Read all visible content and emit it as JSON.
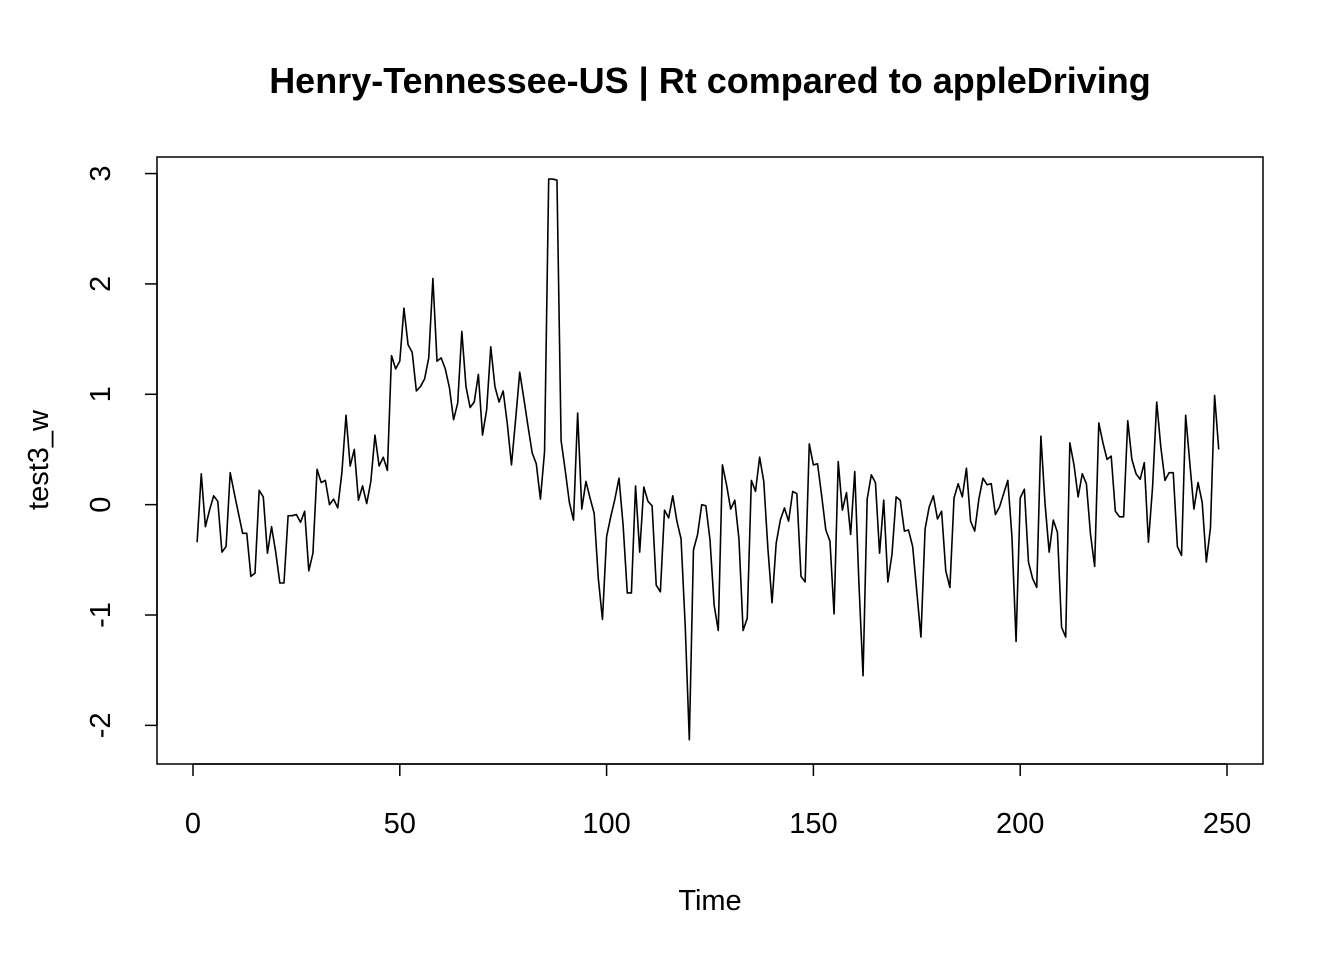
{
  "chart_data": {
    "type": "line",
    "title": "Henry-Tennessee-US | Rt compared to appleDriving",
    "xlabel": "Time",
    "ylabel": "test3_w",
    "xlim": [
      -8.7,
      258.7
    ],
    "ylim": [
      -2.35,
      3.15
    ],
    "xticks": [
      0,
      50,
      100,
      150,
      200,
      250
    ],
    "yticks": [
      -2,
      -1,
      0,
      1,
      2,
      3
    ],
    "grid": false,
    "color": "#000000",
    "series": [
      {
        "x_start": 1,
        "values": [
          -0.34,
          0.28,
          -0.2,
          -0.05,
          0.08,
          0.03,
          -0.43,
          -0.38,
          0.29,
          0.1,
          -0.08,
          -0.26,
          -0.26,
          -0.65,
          -0.62,
          0.13,
          0.07,
          -0.44,
          -0.2,
          -0.43,
          -0.71,
          -0.71,
          -0.1,
          -0.1,
          -0.09,
          -0.16,
          -0.06,
          -0.6,
          -0.44,
          0.32,
          0.2,
          0.22,
          0.0,
          0.05,
          -0.03,
          0.29,
          0.81,
          0.35,
          0.5,
          0.04,
          0.17,
          0.01,
          0.21,
          0.63,
          0.35,
          0.43,
          0.31,
          1.35,
          1.23,
          1.3,
          1.78,
          1.45,
          1.38,
          1.03,
          1.07,
          1.14,
          1.33,
          2.05,
          1.3,
          1.33,
          1.23,
          1.06,
          0.77,
          0.92,
          1.57,
          1.07,
          0.88,
          0.93,
          1.18,
          0.63,
          0.86,
          1.43,
          1.07,
          0.93,
          1.03,
          0.73,
          0.36,
          0.77,
          1.2,
          0.96,
          0.71,
          0.47,
          0.37,
          0.05,
          0.48,
          2.95,
          2.95,
          2.94,
          0.58,
          0.31,
          0.02,
          -0.14,
          0.83,
          -0.04,
          0.21,
          0.06,
          -0.08,
          -0.67,
          -1.04,
          -0.29,
          -0.11,
          0.05,
          0.24,
          -0.19,
          -0.8,
          -0.8,
          0.17,
          -0.43,
          0.16,
          0.03,
          -0.01,
          -0.73,
          -0.79,
          -0.05,
          -0.12,
          0.08,
          -0.15,
          -0.31,
          -1.09,
          -2.13,
          -0.41,
          -0.27,
          0.0,
          -0.01,
          -0.32,
          -0.91,
          -1.14,
          0.36,
          0.18,
          -0.04,
          0.04,
          -0.31,
          -1.14,
          -1.03,
          0.22,
          0.12,
          0.43,
          0.21,
          -0.4,
          -0.89,
          -0.35,
          -0.14,
          -0.03,
          -0.15,
          0.12,
          0.1,
          -0.65,
          -0.7,
          0.55,
          0.36,
          0.37,
          0.08,
          -0.23,
          -0.33,
          -0.99,
          0.39,
          -0.05,
          0.11,
          -0.27,
          0.3,
          -0.71,
          -1.55,
          0.05,
          0.27,
          0.2,
          -0.44,
          0.04,
          -0.7,
          -0.45,
          0.07,
          0.04,
          -0.24,
          -0.23,
          -0.38,
          -0.79,
          -1.2,
          -0.22,
          -0.02,
          0.08,
          -0.13,
          -0.06,
          -0.6,
          -0.75,
          0.06,
          0.19,
          0.07,
          0.33,
          -0.15,
          -0.24,
          0.05,
          0.24,
          0.18,
          0.19,
          -0.09,
          -0.02,
          0.1,
          0.22,
          -0.29,
          -1.24,
          0.06,
          0.14,
          -0.52,
          -0.67,
          -0.75,
          0.62,
          0.01,
          -0.43,
          -0.14,
          -0.25,
          -1.11,
          -1.2,
          0.56,
          0.36,
          0.07,
          0.28,
          0.19,
          -0.27,
          -0.56,
          0.74,
          0.56,
          0.41,
          0.44,
          -0.06,
          -0.11,
          -0.11,
          0.76,
          0.41,
          0.28,
          0.23,
          0.38,
          -0.34,
          0.16,
          0.93,
          0.52,
          0.22,
          0.29,
          0.29,
          -0.38,
          -0.46,
          0.81,
          0.38,
          -0.04,
          0.2,
          0.02,
          -0.52,
          -0.21,
          0.99,
          0.5
        ]
      }
    ]
  }
}
